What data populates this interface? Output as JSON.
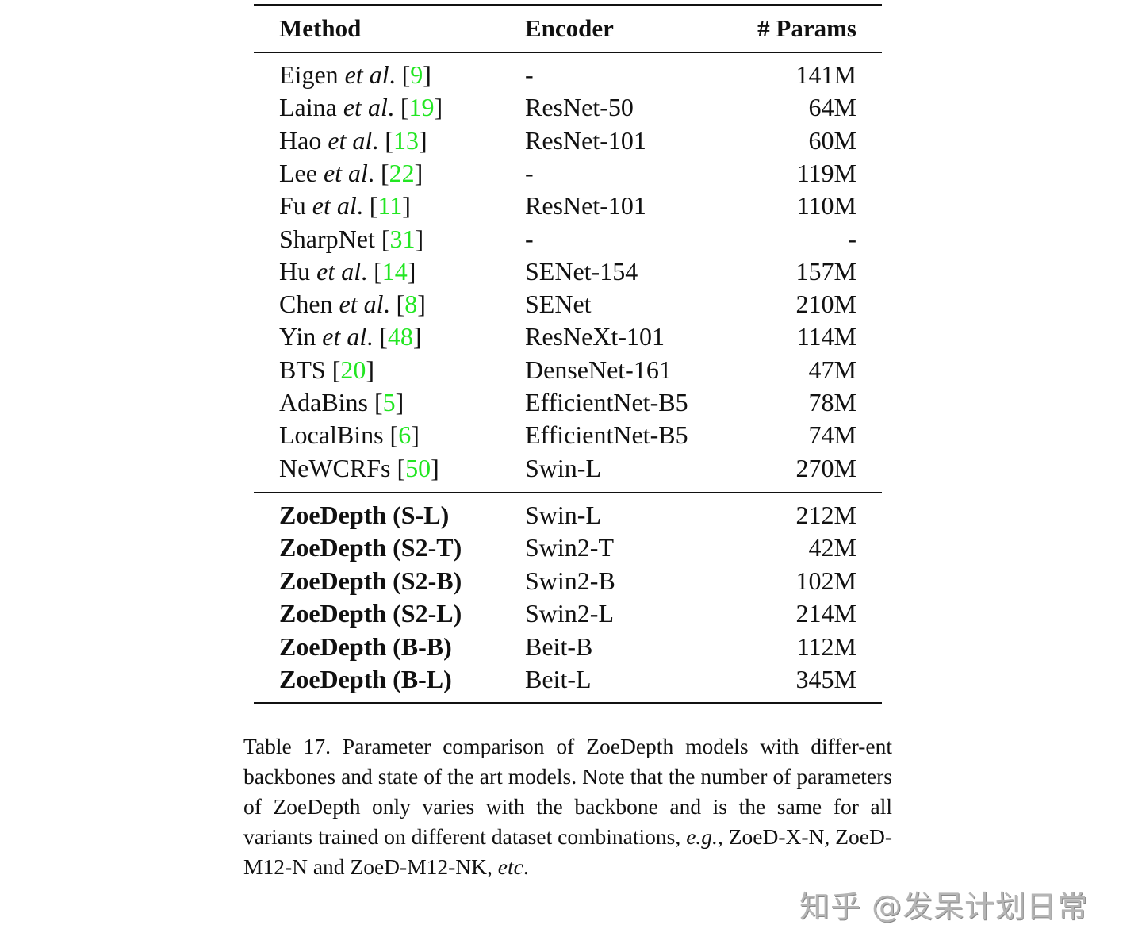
{
  "table": {
    "headers": {
      "method": "Method",
      "encoder": "Encoder",
      "params": "# Params"
    },
    "baseline_rows": [
      {
        "name": "Eigen",
        "etal": "et al",
        "ref": "9",
        "encoder": "-",
        "params": "141M"
      },
      {
        "name": "Laina",
        "etal": "et al",
        "ref": "19",
        "encoder": "ResNet-50",
        "params": "64M"
      },
      {
        "name": "Hao",
        "etal": "et al",
        "ref": "13",
        "encoder": "ResNet-101",
        "params": "60M"
      },
      {
        "name": "Lee",
        "etal": "et al",
        "ref": "22",
        "encoder": "-",
        "params": "119M"
      },
      {
        "name": "Fu",
        "etal": "et al",
        "ref": "11",
        "encoder": "ResNet-101",
        "params": "110M"
      },
      {
        "name": "SharpNet",
        "etal": "",
        "ref": "31",
        "encoder": "-",
        "params": "-"
      },
      {
        "name": "Hu",
        "etal": "et al",
        "ref": "14",
        "encoder": "SENet-154",
        "params": "157M"
      },
      {
        "name": "Chen",
        "etal": "et al",
        "ref": "8",
        "encoder": "SENet",
        "params": "210M"
      },
      {
        "name": "Yin",
        "etal": "et al",
        "ref": "48",
        "encoder": "ResNeXt-101",
        "params": "114M"
      },
      {
        "name": "BTS",
        "etal": "",
        "ref": "20",
        "encoder": "DenseNet-161",
        "params": "47M"
      },
      {
        "name": "AdaBins",
        "etal": "",
        "ref": "5",
        "encoder": "EfficientNet-B5",
        "params": "78M"
      },
      {
        "name": "LocalBins",
        "etal": "",
        "ref": "6",
        "encoder": "EfficientNet-B5",
        "params": "74M"
      },
      {
        "name": "NeWCRFs",
        "etal": "",
        "ref": "50",
        "encoder": "Swin-L",
        "params": "270M"
      }
    ],
    "zoe_rows": [
      {
        "name": "ZoeDepth (S-L)",
        "encoder": "Swin-L",
        "params": "212M"
      },
      {
        "name": "ZoeDepth (S2-T)",
        "encoder": "Swin2-T",
        "params": "42M"
      },
      {
        "name": "ZoeDepth (S2-B)",
        "encoder": "Swin2-B",
        "params": "102M"
      },
      {
        "name": "ZoeDepth (S2-L)",
        "encoder": "Swin2-L",
        "params": "214M"
      },
      {
        "name": "ZoeDepth (B-B)",
        "encoder": "Beit-B",
        "params": "112M"
      },
      {
        "name": "ZoeDepth (B-L)",
        "encoder": "Beit-L",
        "params": "345M"
      }
    ]
  },
  "caption": {
    "text1": "Table 17. Parameter comparison of ZoeDepth models with differ-ent backbones and state of the art models.  Note that the number of parameters of ZoeDepth only varies with the backbone and is the same for all variants trained on different dataset combinations, ",
    "eg": "e.g.",
    "text2": ", ZoeD-X-N, ZoeD-M12-N and ZoeD-M12-NK, ",
    "etc": "etc",
    "text3": "."
  },
  "watermark": "知乎 @发呆计划日常",
  "colors": {
    "reference_link": "#22e622"
  }
}
